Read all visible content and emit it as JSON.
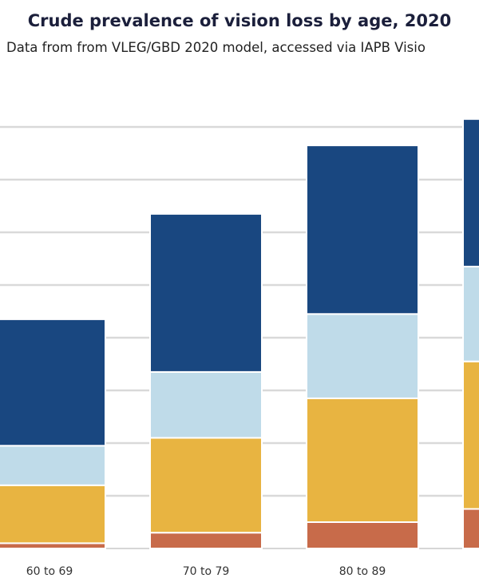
{
  "chart_data": {
    "type": "bar",
    "stacked": true,
    "title": "Crude prevalence of vision loss by age, 2020",
    "subtitle": "Data from from VLEG/GBD 2020 model, accessed via IAPB Visio",
    "categories": [
      "60 to 69",
      "70 to 79",
      "80 to 89",
      ""
    ],
    "series": [
      {
        "color": "#c86b4a",
        "values": [
          1,
          3,
          5,
          7.5
        ]
      },
      {
        "color": "#e8b441",
        "values": [
          11,
          18,
          23.5,
          28
        ]
      },
      {
        "color": "#bfdbe9",
        "values": [
          7.5,
          12.5,
          16,
          18
        ]
      },
      {
        "color": "#194780",
        "values": [
          24,
          30,
          32,
          28
        ]
      }
    ],
    "ylim": [
      0,
      100
    ],
    "grid": true
  }
}
